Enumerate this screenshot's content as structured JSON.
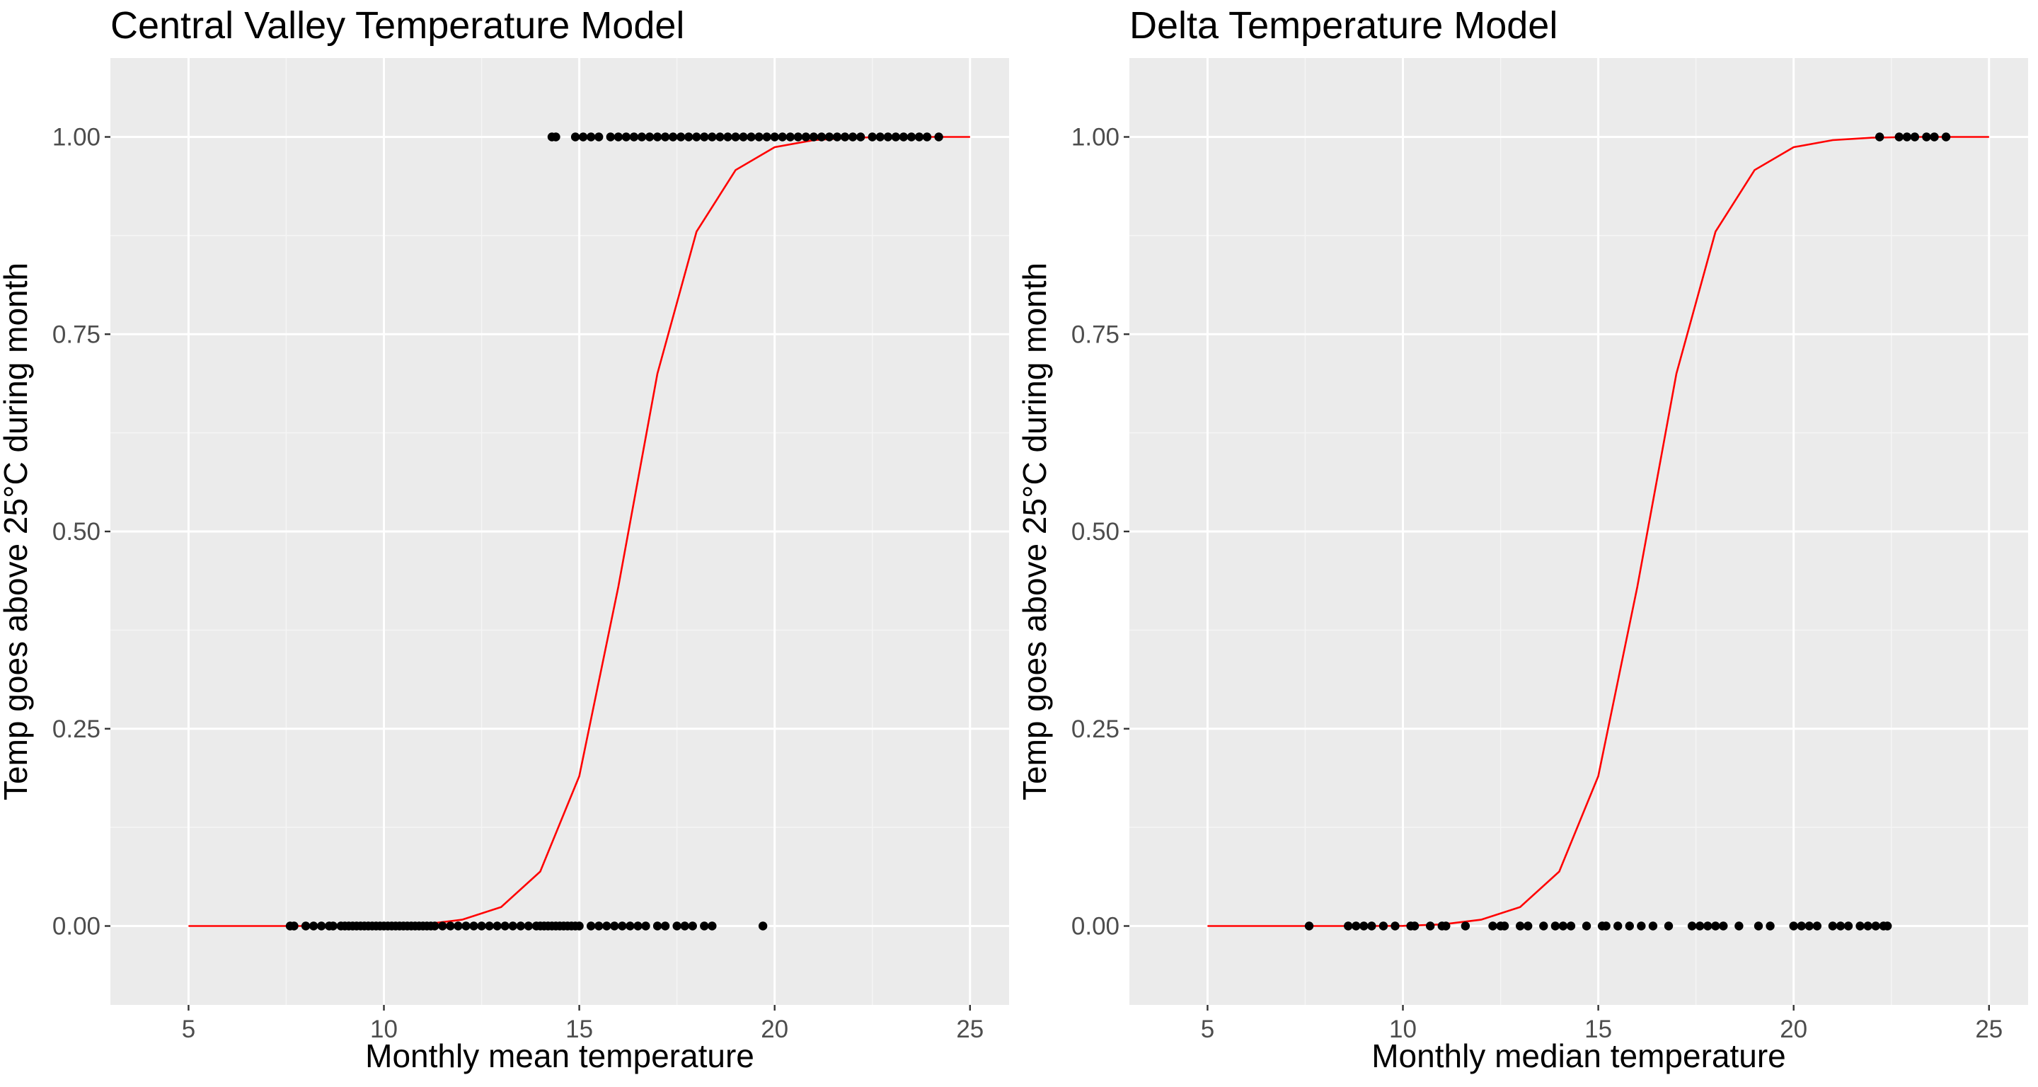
{
  "colors": {
    "panel_background": "#ebebeb",
    "grid_major": "#ffffff",
    "grid_minor": "#f5f5f5",
    "curve": "#ff0000",
    "points": "#000000",
    "tick_text": "#4d4d4d"
  },
  "chart_data": [
    {
      "type": "scatter",
      "title": "Central Valley Temperature Model",
      "xlabel": "Monthly mean temperature",
      "ylabel": "Temp goes above 25°C during month",
      "xlim": [
        3,
        26
      ],
      "ylim": [
        -0.1,
        1.1
      ],
      "x_ticks": [
        5,
        10,
        15,
        20,
        25
      ],
      "y_ticks": [
        0,
        0.25,
        0.5,
        0.75,
        1
      ],
      "x_tick_labels": [
        "5",
        "10",
        "15",
        "20",
        "25"
      ],
      "y_tick_labels": [
        "0.00",
        "0.25",
        "0.50",
        "0.75",
        "1.00"
      ],
      "grid": true,
      "series": [
        {
          "kind": "line",
          "color": "#ff0000",
          "x": [
            5,
            6,
            7,
            8,
            9,
            10,
            11,
            12,
            13,
            14,
            15,
            16,
            17,
            18,
            19,
            20,
            21,
            22,
            23,
            24,
            25
          ],
          "y": [
            0,
            0,
            0,
            0,
            0,
            0.0002,
            0.002,
            0.008,
            0.024,
            0.069,
            0.19,
            0.43,
            0.7,
            0.88,
            0.958,
            0.987,
            0.996,
            0.999,
            1,
            1,
            1
          ]
        },
        {
          "kind": "points",
          "color": "#000000",
          "x": [
            7.6,
            7.7,
            8.0,
            8.2,
            8.4,
            8.6,
            8.7,
            8.9,
            9.0,
            9.1,
            9.2,
            9.3,
            9.4,
            9.5,
            9.6,
            9.7,
            9.8,
            9.9,
            10.0,
            10.1,
            10.2,
            10.3,
            10.4,
            10.5,
            10.6,
            10.7,
            10.8,
            10.9,
            11.0,
            11.1,
            11.2,
            11.3,
            11.5,
            11.7,
            11.9,
            12.1,
            12.3,
            12.5,
            12.7,
            12.9,
            13.1,
            13.3,
            13.5,
            13.7,
            13.9,
            14.0,
            14.1,
            14.2,
            14.3,
            14.4,
            14.5,
            14.6,
            14.7,
            14.8,
            14.9,
            15.0,
            15.3,
            15.5,
            15.7,
            15.9,
            16.1,
            16.3,
            16.5,
            16.7,
            17.0,
            17.2,
            17.5,
            17.7,
            17.9,
            18.2,
            18.4,
            19.7,
            14.3,
            14.4,
            14.9,
            15.1,
            15.3,
            15.5,
            15.8,
            16.0,
            16.2,
            16.4,
            16.6,
            16.8,
            17.0,
            17.2,
            17.4,
            17.6,
            17.8,
            18.0,
            18.2,
            18.4,
            18.6,
            18.8,
            19.0,
            19.2,
            19.4,
            19.6,
            19.8,
            20.0,
            20.2,
            20.4,
            20.6,
            20.8,
            21.0,
            21.2,
            21.4,
            21.6,
            21.8,
            22.0,
            22.2,
            22.5,
            22.7,
            22.9,
            23.1,
            23.3,
            23.5,
            23.7,
            23.9,
            24.2
          ],
          "y": [
            0,
            0,
            0,
            0,
            0,
            0,
            0,
            0,
            0,
            0,
            0,
            0,
            0,
            0,
            0,
            0,
            0,
            0,
            0,
            0,
            0,
            0,
            0,
            0,
            0,
            0,
            0,
            0,
            0,
            0,
            0,
            0,
            0,
            0,
            0,
            0,
            0,
            0,
            0,
            0,
            0,
            0,
            0,
            0,
            0,
            0,
            0,
            0,
            0,
            0,
            0,
            0,
            0,
            0,
            0,
            0,
            0,
            0,
            0,
            0,
            0,
            0,
            0,
            0,
            0,
            0,
            0,
            0,
            0,
            0,
            0,
            0,
            1,
            1,
            1,
            1,
            1,
            1,
            1,
            1,
            1,
            1,
            1,
            1,
            1,
            1,
            1,
            1,
            1,
            1,
            1,
            1,
            1,
            1,
            1,
            1,
            1,
            1,
            1,
            1,
            1,
            1,
            1,
            1,
            1,
            1,
            1,
            1,
            1,
            1,
            1,
            1,
            1,
            1,
            1,
            1,
            1,
            1,
            1,
            1
          ]
        }
      ]
    },
    {
      "type": "scatter",
      "title": "Delta Temperature Model",
      "xlabel": "Monthly median temperature",
      "ylabel": "Temp goes above 25°C during month",
      "xlim": [
        3,
        26
      ],
      "ylim": [
        -0.1,
        1.1
      ],
      "x_ticks": [
        5,
        10,
        15,
        20,
        25
      ],
      "y_ticks": [
        0,
        0.25,
        0.5,
        0.75,
        1
      ],
      "x_tick_labels": [
        "5",
        "10",
        "15",
        "20",
        "25"
      ],
      "y_tick_labels": [
        "0.00",
        "0.25",
        "0.50",
        "0.75",
        "1.00"
      ],
      "grid": true,
      "series": [
        {
          "kind": "line",
          "color": "#ff0000",
          "x": [
            5,
            6,
            7,
            8,
            9,
            10,
            11,
            12,
            13,
            14,
            15,
            16,
            17,
            18,
            19,
            20,
            21,
            22,
            23,
            24,
            25
          ],
          "y": [
            0,
            0,
            0,
            0,
            0,
            0.0002,
            0.002,
            0.008,
            0.024,
            0.069,
            0.19,
            0.43,
            0.7,
            0.88,
            0.958,
            0.987,
            0.996,
            0.999,
            1,
            1,
            1
          ]
        },
        {
          "kind": "points",
          "color": "#000000",
          "x": [
            7.6,
            8.6,
            8.8,
            9.0,
            9.2,
            9.5,
            9.8,
            10.2,
            10.3,
            10.7,
            11.0,
            11.1,
            11.6,
            12.3,
            12.5,
            12.6,
            13.0,
            13.2,
            13.6,
            13.9,
            14.1,
            14.3,
            14.7,
            15.1,
            15.2,
            15.5,
            15.8,
            16.1,
            16.4,
            16.8,
            17.4,
            17.6,
            17.8,
            18.0,
            18.2,
            18.6,
            19.1,
            19.4,
            20.0,
            20.2,
            20.4,
            20.6,
            21.0,
            21.2,
            21.4,
            21.7,
            21.9,
            22.1,
            22.3,
            22.4,
            22.2,
            22.7,
            22.9,
            23.1,
            23.4,
            23.6,
            23.9
          ],
          "y": [
            0,
            0,
            0,
            0,
            0,
            0,
            0,
            0,
            0,
            0,
            0,
            0,
            0,
            0,
            0,
            0,
            0,
            0,
            0,
            0,
            0,
            0,
            0,
            0,
            0,
            0,
            0,
            0,
            0,
            0,
            0,
            0,
            0,
            0,
            0,
            0,
            0,
            0,
            0,
            0,
            0,
            0,
            0,
            0,
            0,
            0,
            0,
            0,
            0,
            0,
            1,
            1,
            1,
            1,
            1,
            1,
            1
          ]
        }
      ]
    }
  ]
}
